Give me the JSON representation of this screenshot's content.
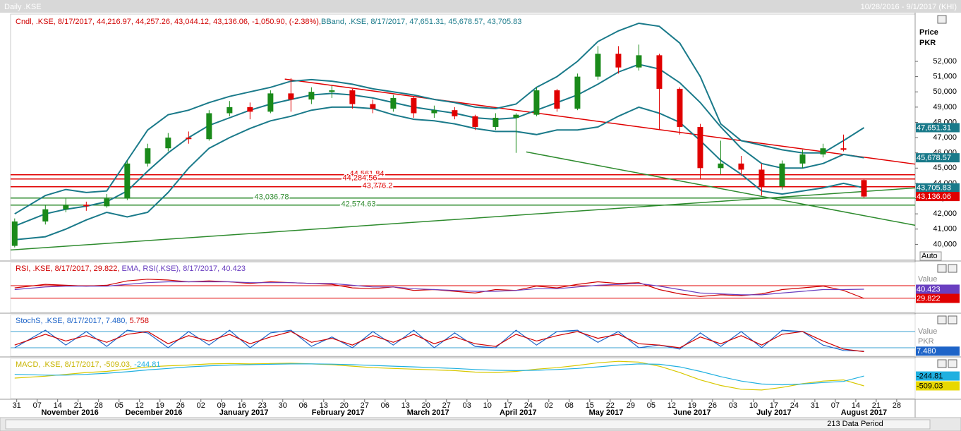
{
  "chart_data": {
    "type": "candlestick",
    "title": "Daily .KSE",
    "date_range": "10/28/2016 - 9/1/2017 (KHI)",
    "status": "213 Data Period",
    "y_axis_label": [
      "Price",
      "PKR"
    ],
    "scale_mode": "Auto",
    "legend": [
      {
        "text": "Cndl, .KSE, 8/17/2017, 44,216.97, 44,257.26, 43,044.12, 43,136.06, -1,050.90, (-2.38%),",
        "color": "#d00000"
      },
      {
        "text": "BBand, .KSE, 8/17/2017, 47,651.31, 45,678.57, 43,705.83",
        "color": "#1a7a8a"
      }
    ],
    "up_color": "#1a8a1a",
    "down_color": "#e00000",
    "band_color": "#1a7a8a",
    "x": [
      -0.1,
      1.4,
      2.4,
      3.4,
      4.4,
      5.4,
      6.4,
      7.4,
      8.4,
      9.4,
      10.4,
      11.4,
      12.4,
      13.4,
      14.4,
      15.4,
      16.4,
      17.4,
      18.4,
      19.4,
      20.4,
      21.4,
      22.4,
      23.4,
      24.4,
      25.4,
      26.4,
      27.4,
      28.4,
      29.4,
      30.4,
      31.4,
      32.4,
      33.4,
      34.4,
      35.4,
      36.4,
      37.4,
      38.4,
      39.4,
      40.4,
      41.4
    ],
    "open": [
      39900,
      41500,
      42300,
      42600,
      42500,
      43000,
      45300,
      46300,
      47000,
      46900,
      48600,
      49000,
      48700,
      49900,
      49500,
      50000,
      50100,
      49200,
      48900,
      49600,
      48600,
      48800,
      48400,
      47700,
      48300,
      48500,
      50100,
      48900,
      51000,
      52500,
      51600,
      52400,
      50200,
      47700,
      45000,
      45300,
      44900,
      43800,
      45300,
      45900,
      46300,
      44216.97
    ],
    "high": [
      41700,
      42600,
      43000,
      42800,
      43300,
      45500,
      46600,
      47300,
      47400,
      48800,
      49400,
      49300,
      50100,
      50900,
      50300,
      50400,
      50200,
      49500,
      49800,
      49700,
      49100,
      49000,
      48500,
      48600,
      48600,
      50300,
      50200,
      51200,
      53000,
      53000,
      53100,
      52500,
      50300,
      47900,
      46800,
      45800,
      45300,
      45500,
      46200,
      46600,
      47200,
      44257.26
    ],
    "low": [
      39800,
      41300,
      42100,
      42200,
      42400,
      42900,
      45100,
      46100,
      46600,
      46800,
      48400,
      48200,
      48600,
      48700,
      49200,
      49600,
      48900,
      48600,
      48700,
      48300,
      48300,
      48200,
      47500,
      47500,
      46000,
      48400,
      48700,
      48800,
      50800,
      51200,
      51400,
      47500,
      47200,
      44300,
      44600,
      44500,
      43200,
      43600,
      45000,
      45700,
      46100,
      43044.12
    ],
    "close": [
      41500,
      42300,
      42600,
      42500,
      43000,
      45300,
      46300,
      47000,
      46900,
      48600,
      49000,
      48700,
      49900,
      49500,
      50000,
      50100,
      49200,
      48900,
      49600,
      48600,
      48800,
      48400,
      47700,
      48300,
      48500,
      50100,
      48900,
      51000,
      52500,
      51600,
      52400,
      50200,
      47700,
      45000,
      45300,
      44900,
      43800,
      45300,
      45900,
      46300,
      46200,
      43136.06
    ],
    "bands": [
      [
        42000,
        43200,
        43600,
        43400,
        43500,
        45500,
        47500,
        48500,
        48800,
        49300,
        49700,
        50000,
        50300,
        50700,
        50800,
        50700,
        50500,
        50200,
        50000,
        49800,
        49500,
        49300,
        49000,
        48900,
        49200,
        50300,
        51000,
        52000,
        53300,
        54000,
        54500,
        54300,
        53200,
        51000,
        47900,
        46800,
        46500,
        46200,
        46000,
        46000,
        46800,
        47651.31
      ],
      [
        41200,
        42000,
        42300,
        42500,
        42800,
        43500,
        44800,
        46000,
        47000,
        47800,
        48300,
        48800,
        49200,
        49500,
        49800,
        49900,
        49800,
        49600,
        49300,
        49000,
        48800,
        48600,
        48300,
        48200,
        48300,
        48800,
        49300,
        49800,
        50500,
        51300,
        51800,
        51500,
        50600,
        49300,
        47700,
        46300,
        45300,
        45000,
        45000,
        45300,
        45900,
        45678.57
      ],
      [
        40300,
        40500,
        41000,
        41600,
        42100,
        41800,
        42100,
        43400,
        45000,
        46300,
        47000,
        47600,
        48100,
        48400,
        48800,
        49000,
        49000,
        48900,
        48500,
        48200,
        48100,
        47900,
        47600,
        47400,
        47400,
        47200,
        47500,
        47500,
        47700,
        48400,
        49000,
        48600,
        48000,
        46800,
        45500,
        44600,
        43500,
        43300,
        43500,
        43700,
        44000,
        43705.83
      ]
    ],
    "trendlines": [
      {
        "color": "#e00000",
        "x": [
          13.1,
          43.9
        ],
        "y": [
          50840,
          45260
        ]
      },
      {
        "color": "#2e8b2e",
        "x": [
          -0.3,
          43.9
        ],
        "y": [
          39630,
          43700
        ]
      },
      {
        "color": "#2e8b2e",
        "x": [
          24.9,
          43.9
        ],
        "y": [
          46060,
          41250
        ]
      }
    ],
    "levels": [
      {
        "value": 44561.84,
        "label": "44,561.84",
        "color": "#e00000"
      },
      {
        "value": 44284.56,
        "label": "44,284.56",
        "color": "#e00000"
      },
      {
        "value": 43776.2,
        "label": "43,776.2",
        "color": "#e00000"
      },
      {
        "value": 43036.78,
        "label": "43,036.78",
        "color": "#2e8b2e"
      },
      {
        "value": 42574.63,
        "label": "42,574.63",
        "color": "#2e8b2e"
      }
    ],
    "tags": [
      {
        "value": 47651.31,
        "label": "47,651.31",
        "color": "#1a7a8a"
      },
      {
        "value": 45678.57,
        "label": "45,678.57",
        "color": "#1a7a8a"
      },
      {
        "value": 43705.83,
        "label": "43,705.83",
        "color": "#1a7a8a"
      },
      {
        "value": 43136.06,
        "label": "43,136.06",
        "color": "#e00000"
      }
    ],
    "ylim": [
      39000,
      55100
    ],
    "yticks": [
      {
        "value": 40000,
        "label": "40,000"
      },
      {
        "value": 41000,
        "label": "41,000"
      },
      {
        "value": 42000,
        "label": "42,000"
      },
      {
        "value": 43000,
        "label": "43,000"
      },
      {
        "value": 44000,
        "label": "44,000"
      },
      {
        "value": 45000,
        "label": "45,000"
      },
      {
        "value": 46000,
        "label": "46,000"
      },
      {
        "value": 47000,
        "label": "47,000"
      },
      {
        "value": 48000,
        "label": "48,000"
      },
      {
        "value": 49000,
        "label": "49,000"
      },
      {
        "value": 50000,
        "label": "50,000"
      },
      {
        "value": 51000,
        "label": "51,000"
      },
      {
        "value": 52000,
        "label": "52,000"
      }
    ],
    "xlim": [
      -0.3,
      43.9
    ],
    "xticks": [
      {
        "value": 0,
        "label": "31"
      },
      {
        "value": 1,
        "label": "07"
      },
      {
        "value": 2,
        "label": "14"
      },
      {
        "value": 3,
        "label": "21"
      },
      {
        "value": 4,
        "label": "28"
      },
      {
        "value": 5,
        "label": "05"
      },
      {
        "value": 6,
        "label": "12"
      },
      {
        "value": 7,
        "label": "19"
      },
      {
        "value": 8,
        "label": "26"
      },
      {
        "value": 9,
        "label": "02"
      },
      {
        "value": 10,
        "label": "09"
      },
      {
        "value": 11,
        "label": "16"
      },
      {
        "value": 12,
        "label": "23"
      },
      {
        "value": 13,
        "label": "30"
      },
      {
        "value": 14,
        "label": "06"
      },
      {
        "value": 15,
        "label": "13"
      },
      {
        "value": 16,
        "label": "20"
      },
      {
        "value": 17,
        "label": "27"
      },
      {
        "value": 18,
        "label": "06"
      },
      {
        "value": 19,
        "label": "13"
      },
      {
        "value": 20,
        "label": "20"
      },
      {
        "value": 21,
        "label": "27"
      },
      {
        "value": 22,
        "label": "03"
      },
      {
        "value": 23,
        "label": "10"
      },
      {
        "value": 24,
        "label": "17"
      },
      {
        "value": 25,
        "label": "24"
      },
      {
        "value": 26,
        "label": "02"
      },
      {
        "value": 27,
        "label": "08"
      },
      {
        "value": 28,
        "label": "15"
      },
      {
        "value": 29,
        "label": "22"
      },
      {
        "value": 30,
        "label": "29"
      },
      {
        "value": 31,
        "label": "05"
      },
      {
        "value": 32,
        "label": "12"
      },
      {
        "value": 33,
        "label": "19"
      },
      {
        "value": 34,
        "label": "26"
      },
      {
        "value": 35,
        "label": "03"
      },
      {
        "value": 36,
        "label": "10"
      },
      {
        "value": 37,
        "label": "17"
      },
      {
        "value": 38,
        "label": "24"
      },
      {
        "value": 39,
        "label": "31"
      },
      {
        "value": 40,
        "label": "07"
      },
      {
        "value": 41,
        "label": "14"
      },
      {
        "value": 42,
        "label": "21"
      },
      {
        "value": 43,
        "label": "28"
      }
    ],
    "months": [
      {
        "value": 2.6,
        "label": "November 2016"
      },
      {
        "value": 6.7,
        "label": "December 2016"
      },
      {
        "value": 11.1,
        "label": "January 2017"
      },
      {
        "value": 15.7,
        "label": "February 2017"
      },
      {
        "value": 20.1,
        "label": "March 2017"
      },
      {
        "value": 24.5,
        "label": "April 2017"
      },
      {
        "value": 28.8,
        "label": "May 2017"
      },
      {
        "value": 33.0,
        "label": "June 2017"
      },
      {
        "value": 37.0,
        "label": "July 2017"
      },
      {
        "value": 41.4,
        "label": "August 2017"
      }
    ],
    "indicators": [
      {
        "legend": [
          {
            "text": "RSI, .KSE, 8/17/2017, 29.822,",
            "color": "#d00000"
          },
          {
            "text": " EMA, RSI(.KSE), 8/17/2017, 40.423",
            "color": "#6a3fc0"
          }
        ],
        "ylim": [
          13.5,
          71.4
        ],
        "levels": [
          30,
          44.5
        ],
        "level_color": "#e00000",
        "axis_labels": [
          "Value"
        ],
        "series": [
          {
            "color": "#d00000",
            "values": [
              42,
              46,
              45,
              44,
              45,
              50,
              52,
              51,
              49,
              50,
              49,
              47,
              49,
              48,
              47,
              46,
              42,
              41,
              43,
              39,
              40,
              38,
              36,
              40,
              39,
              44,
              42,
              46,
              49,
              47,
              48,
              40,
              35,
              32,
              34,
              33,
              35,
              40,
              42,
              44,
              39,
              29.822
            ]
          },
          {
            "color": "#6a3fc0",
            "values": [
              40,
              43,
              44,
              44,
              44,
              46,
              48,
              49,
              49,
              49,
              49,
              48,
              48,
              48,
              47,
              47,
              45,
              43,
              43,
              41,
              40,
              39,
              38,
              38,
              39,
              41,
              41,
              43,
              45,
              46,
              47,
              44,
              40,
              36,
              35,
              34,
              34,
              36,
              38,
              40,
              40,
              40.423
            ]
          }
        ],
        "tags": [
          {
            "value": 40.423,
            "label": "40.423",
            "color": "#6a3fc0"
          },
          {
            "value": 29.822,
            "label": "29.822",
            "color": "#e00000"
          }
        ]
      },
      {
        "legend": [
          {
            "text": "StochS, .KSE, 8/17/2017, 7.480,",
            "color": "#1e64c8"
          },
          {
            "text": " 5.758",
            "color": "#d00000"
          }
        ],
        "ylim": [
          -11.3,
          142.7
        ],
        "levels": [
          20,
          80
        ],
        "level_color": "#3aa0d0",
        "axis_labels": [
          "Value",
          "PKR"
        ],
        "series": [
          {
            "color": "#1e64c8",
            "values": [
              20,
              85,
              30,
              80,
              25,
              85,
              75,
              20,
              80,
              30,
              85,
              20,
              75,
              85,
              25,
              60,
              20,
              80,
              30,
              85,
              20,
              75,
              25,
              20,
              85,
              30,
              80,
              85,
              40,
              80,
              20,
              30,
              15,
              75,
              25,
              80,
              20,
              85,
              80,
              30,
              10,
              7.48
            ]
          },
          {
            "color": "#d00000",
            "values": [
              30,
              70,
              45,
              65,
              40,
              70,
              80,
              35,
              65,
              45,
              70,
              35,
              60,
              80,
              40,
              55,
              30,
              65,
              40,
              70,
              35,
              60,
              35,
              25,
              70,
              45,
              65,
              80,
              55,
              70,
              35,
              30,
              20,
              60,
              35,
              65,
              30,
              70,
              80,
              45,
              15,
              5.758
            ]
          }
        ],
        "tags": [
          {
            "value": 7.48,
            "label": "7.480",
            "color": "#1e64c8"
          }
        ]
      },
      {
        "legend": [
          {
            "text": "MACD, .KSE, 8/17/2017, -509.03,",
            "color": "#c8b400"
          },
          {
            "text": " -244.81",
            "color": "#20b0e0"
          }
        ],
        "ylim": [
          -850,
          230
        ],
        "levels": [],
        "level_color": "#999999",
        "axis_labels": [],
        "series": [
          {
            "color": "#d8c800",
            "values": [
              -300,
              -250,
              -200,
              -150,
              -120,
              -60,
              0,
              30,
              50,
              80,
              90,
              80,
              90,
              100,
              80,
              60,
              20,
              -20,
              -40,
              -60,
              -80,
              -100,
              -140,
              -150,
              -120,
              -60,
              -20,
              40,
              110,
              150,
              130,
              20,
              -150,
              -350,
              -500,
              -600,
              -620,
              -550,
              -450,
              -380,
              -350,
              -509.03
            ]
          },
          {
            "color": "#20b0e0",
            "values": [
              -200,
              -220,
              -220,
              -200,
              -170,
              -130,
              -80,
              -40,
              0,
              30,
              50,
              60,
              70,
              80,
              80,
              75,
              60,
              40,
              20,
              0,
              -20,
              -40,
              -70,
              -90,
              -100,
              -90,
              -70,
              -40,
              0,
              50,
              80,
              70,
              0,
              -120,
              -260,
              -380,
              -460,
              -480,
              -460,
              -420,
              -390,
              -244.81
            ]
          }
        ],
        "tags": [
          {
            "value": -244.81,
            "label": "-244.81",
            "color": "#20b0e0"
          },
          {
            "value": -509.03,
            "label": "-509.03",
            "color": "#e8d800"
          }
        ]
      }
    ]
  }
}
